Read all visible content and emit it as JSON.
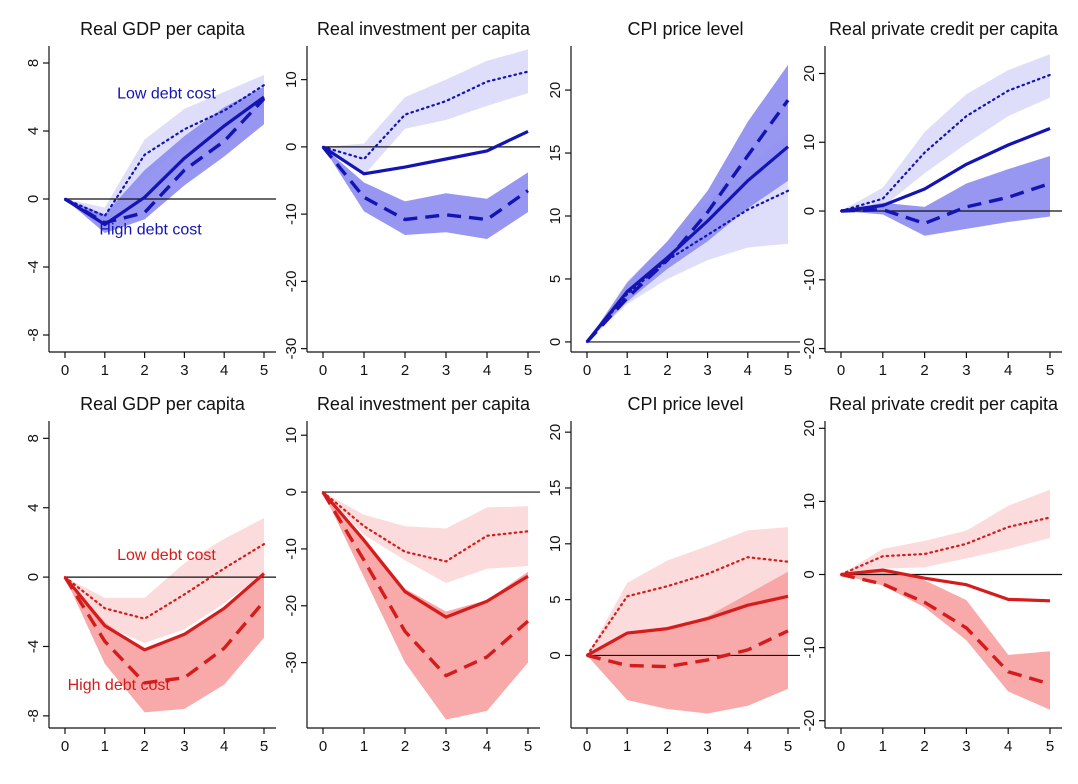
{
  "colors": {
    "blue_line": "#1414b4",
    "blue_band_dark": "#8c8cf0",
    "blue_band_light": "#dcdcfa",
    "red_line": "#d41c1c",
    "red_band_dark": "#f7a0a0",
    "red_band_light": "#fbd9d9"
  },
  "chart_data": [
    {
      "type": "line",
      "title": "Real GDP per capita",
      "row": "top",
      "color": "blue",
      "x": [
        0,
        1,
        2,
        3,
        4,
        5
      ],
      "ylim": [
        -9,
        9
      ],
      "yticks": [
        -8,
        -4,
        0,
        4,
        8
      ],
      "series": [
        {
          "style": "solid",
          "values": [
            0,
            -1.5,
            0.1,
            2.4,
            4.3,
            6.0
          ]
        },
        {
          "style": "dashed",
          "values": [
            0,
            -1.4,
            -0.8,
            1.7,
            3.4,
            5.9
          ]
        },
        {
          "style": "dotted",
          "values": [
            0,
            -1.0,
            2.6,
            4.1,
            5.2,
            6.7
          ]
        }
      ],
      "bands": [
        {
          "shade": "light",
          "lower": [
            0,
            -1.4,
            1.3,
            3.2,
            4.4,
            5.4
          ],
          "upper": [
            0,
            -0.5,
            3.5,
            5.3,
            6.3,
            7.3
          ]
        },
        {
          "shade": "dark",
          "lower": [
            0,
            -2.0,
            -1.2,
            0.8,
            2.5,
            4.4
          ],
          "upper": [
            0,
            -0.9,
            1.7,
            3.7,
            5.4,
            6.6
          ]
        }
      ],
      "annotations": [
        {
          "text": "Low debt cost",
          "x": 2.55,
          "y": 5.9
        },
        {
          "text": "High debt cost",
          "x": 2.15,
          "y": -2.1
        }
      ]
    },
    {
      "type": "line",
      "title": "Real investment per capita",
      "row": "top",
      "color": "blue",
      "x": [
        0,
        1,
        2,
        3,
        4,
        5
      ],
      "ylim": [
        -30.5,
        15
      ],
      "yticks": [
        -30,
        -20,
        -10,
        0,
        10
      ],
      "series": [
        {
          "style": "solid",
          "values": [
            0,
            -4.0,
            -3.0,
            -1.8,
            -0.6,
            2.3
          ]
        },
        {
          "style": "dashed",
          "values": [
            0,
            -7.5,
            -10.8,
            -10.1,
            -10.8,
            -6.5
          ]
        },
        {
          "style": "dotted",
          "values": [
            0,
            -1.8,
            4.8,
            6.8,
            9.7,
            11.2
          ]
        }
      ],
      "bands": [
        {
          "shade": "light",
          "lower": [
            0,
            -4.2,
            2.7,
            4.0,
            6.1,
            8.0
          ],
          "upper": [
            0,
            0.5,
            7.4,
            10.0,
            12.8,
            14.5
          ]
        },
        {
          "shade": "dark",
          "lower": [
            0,
            -9.6,
            -13.1,
            -12.7,
            -13.7,
            -9.7
          ],
          "upper": [
            0,
            -5.3,
            -8.1,
            -6.9,
            -7.7,
            -3.8
          ]
        }
      ],
      "annotations": []
    },
    {
      "type": "line",
      "title": "CPI price level",
      "row": "top",
      "color": "blue",
      "x": [
        0,
        1,
        2,
        3,
        4,
        5
      ],
      "ylim": [
        -0.8,
        23.5
      ],
      "yticks": [
        0,
        5,
        10,
        15,
        20
      ],
      "series": [
        {
          "style": "solid",
          "values": [
            0,
            4.0,
            6.7,
            9.6,
            12.8,
            15.5
          ]
        },
        {
          "style": "dashed",
          "values": [
            0,
            3.5,
            6.5,
            10.3,
            14.8,
            19.2
          ]
        },
        {
          "style": "dotted",
          "values": [
            0,
            3.8,
            6.5,
            8.5,
            10.5,
            12.0
          ]
        }
      ],
      "bands": [
        {
          "shade": "light",
          "lower": [
            0,
            3.0,
            5.0,
            6.5,
            7.5,
            7.8
          ],
          "upper": [
            0,
            4.8,
            8.0,
            11.0,
            14.0,
            16.5
          ]
        },
        {
          "shade": "dark",
          "lower": [
            0,
            3.2,
            5.8,
            8.0,
            10.6,
            12.8
          ],
          "upper": [
            0,
            4.7,
            8.0,
            12.0,
            17.5,
            22.0
          ]
        }
      ],
      "annotations": []
    },
    {
      "type": "line",
      "title": "Real private credit per capita",
      "row": "top",
      "color": "blue",
      "x": [
        0,
        1,
        2,
        3,
        4,
        5
      ],
      "ylim": [
        -20.5,
        24
      ],
      "yticks": [
        -20,
        -10,
        0,
        10,
        20
      ],
      "series": [
        {
          "style": "solid",
          "values": [
            0,
            0.8,
            3.2,
            6.8,
            9.6,
            12.0
          ]
        },
        {
          "style": "dashed",
          "values": [
            0,
            0.2,
            -1.8,
            0.6,
            2.0,
            4.0
          ]
        },
        {
          "style": "dotted",
          "values": [
            0,
            1.8,
            8.5,
            13.8,
            17.5,
            19.8
          ]
        }
      ],
      "bands": [
        {
          "shade": "light",
          "lower": [
            0,
            0.6,
            5.5,
            9.8,
            13.8,
            16.5
          ],
          "upper": [
            0,
            3.4,
            11.5,
            17.0,
            20.5,
            22.8
          ]
        },
        {
          "shade": "dark",
          "lower": [
            0,
            -0.5,
            -3.6,
            -2.6,
            -1.6,
            -0.8
          ],
          "upper": [
            0,
            1.2,
            0.6,
            4.0,
            6.1,
            8.0
          ]
        }
      ],
      "annotations": []
    },
    {
      "type": "line",
      "title": "Real GDP per capita",
      "row": "bottom",
      "color": "red",
      "x": [
        0,
        1,
        2,
        3,
        4,
        5
      ],
      "ylim": [
        -8.7,
        9
      ],
      "yticks": [
        -8,
        -4,
        0,
        4,
        8
      ],
      "series": [
        {
          "style": "solid",
          "values": [
            0,
            -2.8,
            -4.2,
            -3.3,
            -1.8,
            0.2
          ]
        },
        {
          "style": "dashed",
          "values": [
            0,
            -3.7,
            -6.1,
            -5.8,
            -4.1,
            -1.4
          ]
        },
        {
          "style": "dotted",
          "values": [
            0,
            -1.8,
            -2.4,
            -1.0,
            0.5,
            1.9
          ]
        }
      ],
      "bands": [
        {
          "shade": "light",
          "lower": [
            0,
            -2.8,
            -3.8,
            -3.0,
            -1.5,
            0.2
          ],
          "upper": [
            0,
            -1.2,
            -1.2,
            0.8,
            2.2,
            3.4
          ]
        },
        {
          "shade": "dark",
          "lower": [
            0,
            -5.0,
            -7.8,
            -7.6,
            -6.2,
            -3.5
          ],
          "upper": [
            0,
            -2.6,
            -4.3,
            -3.3,
            -1.8,
            0.3
          ]
        }
      ],
      "annotations": [
        {
          "text": "Low debt cost",
          "x": 2.55,
          "y": 1.0
        },
        {
          "text": "High debt cost",
          "x": 1.35,
          "y": -6.5
        }
      ]
    },
    {
      "type": "line",
      "title": "Real investment per capita",
      "row": "bottom",
      "color": "red",
      "x": [
        0,
        1,
        2,
        3,
        4,
        5
      ],
      "ylim": [
        -41.5,
        12.5
      ],
      "yticks": [
        -30,
        -20,
        -10,
        0,
        10
      ],
      "series": [
        {
          "style": "solid",
          "values": [
            0,
            -8.5,
            -17.5,
            -22.0,
            -19.2,
            -14.8
          ]
        },
        {
          "style": "dashed",
          "values": [
            0,
            -12.0,
            -24.5,
            -32.3,
            -29.0,
            -22.7
          ]
        },
        {
          "style": "dotted",
          "values": [
            0,
            -6.0,
            -10.5,
            -12.2,
            -7.7,
            -6.9
          ]
        }
      ],
      "bands": [
        {
          "shade": "light",
          "lower": [
            0,
            -7.5,
            -12.0,
            -16.0,
            -13.5,
            -13.0
          ],
          "upper": [
            0,
            -4.0,
            -6.0,
            -6.4,
            -2.7,
            -2.5
          ]
        },
        {
          "shade": "dark",
          "lower": [
            0,
            -15.0,
            -30.0,
            -40.0,
            -38.5,
            -30.0
          ],
          "upper": [
            0,
            -8.0,
            -17.0,
            -21.0,
            -19.0,
            -14.0
          ]
        }
      ],
      "annotations": []
    },
    {
      "type": "line",
      "title": "CPI price level",
      "row": "bottom",
      "color": "red",
      "x": [
        0,
        1,
        2,
        3,
        4,
        5
      ],
      "ylim": [
        -6.5,
        21
      ],
      "yticks": [
        0,
        5,
        10,
        15,
        20
      ],
      "series": [
        {
          "style": "solid",
          "values": [
            0,
            2.0,
            2.4,
            3.3,
            4.5,
            5.3
          ]
        },
        {
          "style": "dashed",
          "values": [
            0,
            -0.9,
            -1.0,
            -0.4,
            0.5,
            2.2
          ]
        },
        {
          "style": "dotted",
          "values": [
            0,
            5.3,
            6.2,
            7.3,
            8.8,
            8.4
          ]
        }
      ],
      "bands": [
        {
          "shade": "light",
          "lower": [
            0,
            1.6,
            2.2,
            2.7,
            4.0,
            5.0
          ],
          "upper": [
            0,
            6.5,
            8.5,
            9.8,
            11.2,
            11.5
          ]
        },
        {
          "shade": "dark",
          "lower": [
            0,
            -4.0,
            -4.8,
            -5.2,
            -4.5,
            -3.0
          ],
          "upper": [
            0,
            1.8,
            2.4,
            3.5,
            5.5,
            7.5
          ]
        }
      ],
      "annotations": []
    },
    {
      "type": "line",
      "title": "Real private credit per capita",
      "row": "bottom",
      "color": "red",
      "x": [
        0,
        1,
        2,
        3,
        4,
        5
      ],
      "ylim": [
        -21,
        21
      ],
      "yticks": [
        -20,
        -10,
        0,
        10,
        20
      ],
      "series": [
        {
          "style": "solid",
          "values": [
            0,
            0.6,
            -0.5,
            -1.4,
            -3.4,
            -3.6
          ]
        },
        {
          "style": "dashed",
          "values": [
            0,
            -1.3,
            -3.8,
            -7.3,
            -13.3,
            -15.0
          ]
        },
        {
          "style": "dotted",
          "values": [
            0,
            2.5,
            2.8,
            4.2,
            6.5,
            7.8
          ]
        }
      ],
      "bands": [
        {
          "shade": "light",
          "lower": [
            0,
            0.8,
            1.0,
            2.2,
            3.5,
            5.0
          ],
          "upper": [
            0,
            3.5,
            4.6,
            6.0,
            9.4,
            11.6
          ]
        },
        {
          "shade": "dark",
          "lower": [
            0,
            -1.5,
            -4.5,
            -9.0,
            -16.0,
            -18.5
          ],
          "upper": [
            0,
            0.8,
            -0.8,
            -3.5,
            -11.0,
            -10.5
          ]
        }
      ],
      "annotations": []
    }
  ]
}
